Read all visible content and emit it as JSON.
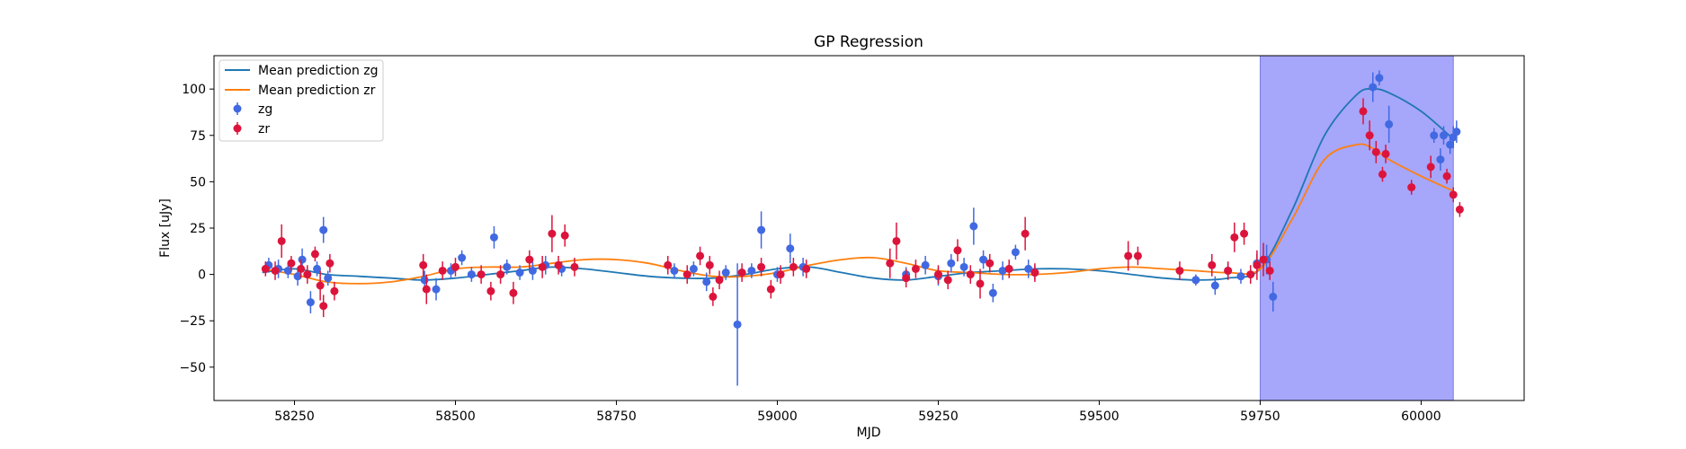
{
  "chart_data": {
    "type": "scatter",
    "title": "GP Regression",
    "xlabel": "MJD",
    "ylabel": "Flux [uJy]",
    "xlim": [
      58125,
      60160
    ],
    "ylim": [
      -68,
      118
    ],
    "xticks": [
      58250,
      58500,
      58750,
      59000,
      59250,
      59500,
      59750,
      60000
    ],
    "yticks": [
      -50,
      -25,
      0,
      25,
      50,
      75,
      100
    ],
    "grid": false,
    "legend": "top-left",
    "legend_entries": [
      "Mean prediction zg",
      "Mean prediction zr",
      "zg",
      "zr"
    ],
    "shaded_region": {
      "x0": 59750,
      "x1": 60050,
      "color": "#a6a6fb"
    },
    "colors": {
      "zg_line": "#1f77b4",
      "zr_line": "#ff7f0e",
      "zg_points": "#4169e1",
      "zr_points": "#dc143c"
    },
    "series": [
      {
        "name": "Mean prediction zg",
        "kind": "line",
        "x": [
          58200,
          58250,
          58300,
          58350,
          58400,
          58450,
          58500,
          58550,
          58600,
          58650,
          58700,
          58750,
          58800,
          58850,
          58900,
          58950,
          59000,
          59050,
          59100,
          59150,
          59200,
          59250,
          59300,
          59350,
          59400,
          59450,
          59500,
          59550,
          59600,
          59650,
          59700,
          59750,
          59800,
          59850,
          59900,
          59925,
          59950,
          60000,
          60050
        ],
        "y": [
          1,
          3,
          0,
          -1,
          -2,
          -3,
          -2,
          0,
          2,
          4,
          3,
          1,
          -1,
          -2,
          -2,
          0,
          3,
          4,
          1,
          -2,
          -3,
          -1,
          1,
          2,
          3,
          3,
          2,
          0,
          -2,
          -3,
          -2,
          3,
          35,
          75,
          97,
          100,
          98,
          88,
          73
        ]
      },
      {
        "name": "Mean prediction zr",
        "kind": "line",
        "x": [
          58200,
          58250,
          58300,
          58350,
          58400,
          58450,
          58500,
          58550,
          58600,
          58650,
          58700,
          58750,
          58800,
          58850,
          58900,
          58950,
          59000,
          59050,
          59100,
          59150,
          59200,
          59250,
          59300,
          59350,
          59400,
          59450,
          59500,
          59550,
          59600,
          59650,
          59700,
          59750,
          59800,
          59850,
          59900,
          59925,
          59950,
          60000,
          60050
        ],
        "y": [
          3,
          0,
          -4,
          -5,
          -4,
          -1,
          3,
          4,
          4,
          6,
          8,
          8,
          6,
          2,
          -1,
          -1,
          1,
          5,
          8,
          9,
          6,
          2,
          1,
          0,
          0,
          1,
          3,
          4,
          3,
          2,
          1,
          3,
          30,
          62,
          70,
          68,
          62,
          53,
          45
        ]
      },
      {
        "name": "zg",
        "kind": "errorbar",
        "x": [
          58210,
          58225,
          58240,
          58255,
          58262,
          58275,
          58285,
          58295,
          58302,
          58452,
          58470,
          58493,
          58510,
          58525,
          58560,
          58580,
          58600,
          58620,
          58640,
          58665,
          58840,
          58870,
          58890,
          58920,
          58938,
          58960,
          58975,
          59000,
          59020,
          59040,
          59200,
          59230,
          59250,
          59270,
          59290,
          59305,
          59320,
          59335,
          59350,
          59370,
          59390,
          59400,
          59650,
          59680,
          59700,
          59720,
          59745,
          59760,
          59770,
          59925,
          59935,
          59950,
          60020,
          60030,
          60035,
          60045,
          60050,
          60055
        ],
        "y": [
          5,
          3,
          2,
          -1,
          8,
          -15,
          3,
          24,
          -2,
          -3,
          -8,
          2,
          9,
          0,
          20,
          4,
          1,
          2,
          5,
          3,
          2,
          3,
          -4,
          1,
          -27,
          2,
          24,
          0,
          14,
          4,
          0,
          5,
          -1,
          6,
          4,
          26,
          8,
          -10,
          2,
          12,
          3,
          1,
          -3,
          -6,
          2,
          -1,
          6,
          8,
          -12,
          101,
          106,
          81,
          75,
          62,
          75,
          70,
          74,
          77
        ],
        "err": [
          4,
          5,
          4,
          5,
          6,
          6,
          4,
          7,
          4,
          5,
          6,
          4,
          4,
          4,
          6,
          4,
          4,
          5,
          5,
          4,
          4,
          4,
          5,
          4,
          33,
          4,
          10,
          4,
          8,
          5,
          4,
          5,
          5,
          5,
          5,
          10,
          5,
          5,
          5,
          4,
          5,
          4,
          3,
          5,
          4,
          4,
          5,
          8,
          8,
          8,
          4,
          10,
          4,
          6,
          5,
          5,
          6,
          6
        ]
      },
      {
        "name": "zr",
        "kind": "errorbar",
        "x": [
          58205,
          58220,
          58230,
          58245,
          58260,
          58270,
          58282,
          58290,
          58295,
          58305,
          58312,
          58450,
          58455,
          58480,
          58500,
          58540,
          58555,
          58570,
          58590,
          58615,
          58635,
          58650,
          58660,
          58670,
          58685,
          58830,
          58860,
          58880,
          58895,
          58900,
          58910,
          58945,
          58975,
          58990,
          59005,
          59025,
          59045,
          59175,
          59185,
          59200,
          59215,
          59250,
          59265,
          59280,
          59300,
          59315,
          59330,
          59360,
          59385,
          59400,
          59545,
          59560,
          59625,
          59675,
          59700,
          59710,
          59725,
          59735,
          59745,
          59755,
          59765,
          59910,
          59920,
          59930,
          59940,
          59945,
          59985,
          60015,
          60040,
          60050,
          60060
        ],
        "y": [
          3,
          2,
          18,
          6,
          3,
          0,
          11,
          -6,
          -17,
          6,
          -9,
          5,
          -8,
          2,
          4,
          0,
          -9,
          0,
          -10,
          8,
          4,
          22,
          5,
          21,
          4,
          5,
          0,
          10,
          5,
          -12,
          -3,
          1,
          4,
          -8,
          0,
          4,
          3,
          6,
          18,
          -2,
          3,
          0,
          -3,
          13,
          0,
          -5,
          6,
          3,
          22,
          1,
          10,
          10,
          2,
          5,
          2,
          20,
          22,
          0,
          5,
          8,
          2,
          88,
          75,
          66,
          54,
          65,
          47,
          58,
          53,
          43,
          35
        ],
        "err": [
          4,
          5,
          9,
          4,
          5,
          5,
          4,
          8,
          6,
          5,
          5,
          6,
          8,
          5,
          5,
          5,
          5,
          5,
          6,
          5,
          6,
          10,
          5,
          6,
          5,
          5,
          5,
          5,
          5,
          5,
          5,
          5,
          5,
          5,
          5,
          5,
          5,
          8,
          10,
          5,
          5,
          5,
          5,
          6,
          5,
          8,
          5,
          5,
          9,
          5,
          8,
          5,
          5,
          6,
          5,
          8,
          6,
          5,
          8,
          9,
          5,
          7,
          8,
          6,
          4,
          5,
          4,
          6,
          4,
          4,
          4
        ]
      }
    ]
  }
}
